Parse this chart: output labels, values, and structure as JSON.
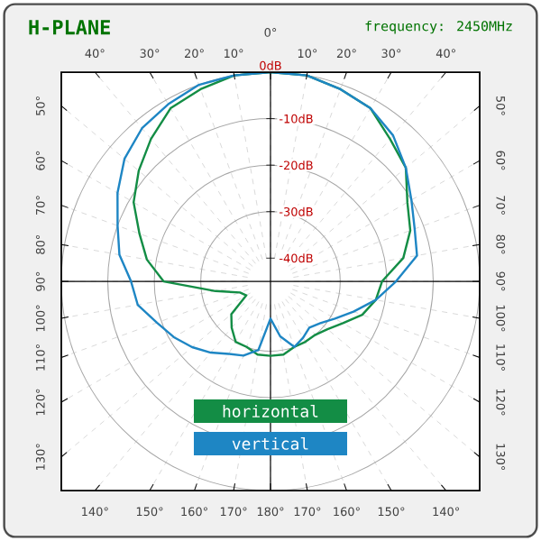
{
  "chart_data": {
    "type": "radar",
    "title": "H-PLANE",
    "subtitle": "frequency: 2450MHz",
    "categories": [
      "0°",
      "10°",
      "20°",
      "30°",
      "40°",
      "50°",
      "60°",
      "70°",
      "80°",
      "90°",
      "100°",
      "110°",
      "120°",
      "130°",
      "140°",
      "150°",
      "160°",
      "170°",
      "180°",
      "170°",
      "160°",
      "150°",
      "140°",
      "130°",
      "120°",
      "110°",
      "100°",
      "90°",
      "80°",
      "70°",
      "60°",
      "50°",
      "40°",
      "30°",
      "20°",
      "10°"
    ],
    "series": [
      {
        "name": "horizontal",
        "color": "#138d45",
        "values": [
          0,
          0,
          -1,
          -2,
          -5,
          -7,
          -11,
          -13,
          -16,
          -21,
          -22,
          -24,
          -27,
          -29,
          -30,
          -30,
          -30,
          -29,
          -29,
          -29,
          -30,
          -30,
          -32,
          -34,
          -39,
          -38,
          -33,
          -22,
          -18,
          -15,
          -11,
          -8,
          -5,
          -2,
          -1,
          0
        ]
      },
      {
        "name": "vertical",
        "color": "#1e86c4",
        "values": [
          0,
          0,
          -1,
          -2,
          -4,
          -7,
          -10,
          -12,
          -13,
          -18,
          -22,
          -26,
          -29,
          -31,
          -32,
          -31,
          -30,
          -33,
          -37,
          -30,
          -28,
          -27,
          -25,
          -23,
          -21,
          -19,
          -16,
          -15,
          -12,
          -10,
          -7,
          -4,
          -2,
          -1,
          0,
          0
        ]
      }
    ],
    "ylim": [
      -45,
      0
    ],
    "yticks": [
      {
        "value": 0,
        "label": "0dB"
      },
      {
        "value": -10,
        "label": "-10dB"
      },
      {
        "value": -20,
        "label": "-20dB"
      },
      {
        "value": -30,
        "label": "-30dB"
      },
      {
        "value": -40,
        "label": "-40dB"
      }
    ],
    "grid": true,
    "legend": "bottom"
  }
}
